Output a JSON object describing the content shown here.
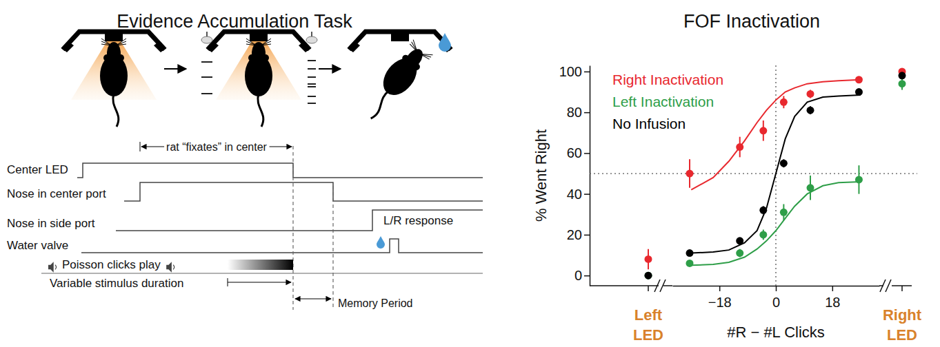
{
  "diagram": {
    "title": "Evidence Accumulation Task",
    "fixation_label": "rat “fixates” in center",
    "rows": [
      "Center LED",
      "Nose in center port",
      "Nose in side port",
      "Water valve"
    ],
    "response_label": "L/R response",
    "clicks_label": "Poisson clicks play",
    "duration_label": "Variable stimulus duration",
    "memory_label": "Memory Period"
  },
  "chart_data": {
    "type": "scatter",
    "title": "FOF Inactivation",
    "x_label": "#R − #L Clicks",
    "y_label": "% Went Right",
    "x": [
      -27.5,
      -11.5,
      -4,
      2.5,
      11,
      26.5
    ],
    "xlim": [
      -33,
      33
    ],
    "xticks": [
      {
        "value": -18,
        "label": "−18"
      },
      0,
      18
    ],
    "ylim": [
      -5,
      103
    ],
    "yticks": [
      0,
      20,
      40,
      60,
      80,
      100
    ],
    "x_ref": 0,
    "y_ref": 50,
    "led_labels": [
      "Left LED",
      "Right LED"
    ],
    "fit_x": [
      -27,
      -20,
      -15,
      -10,
      -6,
      -3,
      0,
      3,
      6,
      10,
      15,
      20,
      27
    ],
    "legend": "top-left",
    "series": [
      {
        "name": "Right Inactivation",
        "color": "#e8282e",
        "marker": "circle",
        "values": [
          50,
          63,
          71,
          85,
          89,
          96
        ],
        "errors": [
          7,
          5,
          5,
          3,
          2,
          1.5
        ],
        "fit": [
          42,
          48,
          56,
          66,
          75,
          81,
          86,
          90,
          92,
          94,
          95,
          95.5,
          96
        ],
        "left_led": 8,
        "left_led_error": 5,
        "right_led": 100,
        "right_led_error": 0
      },
      {
        "name": "Left Inactivation",
        "color": "#2e9e48",
        "marker": "circle",
        "values": [
          6,
          11,
          20,
          31,
          43,
          47
        ],
        "errors": [
          1.5,
          2,
          2.5,
          4,
          6,
          7
        ],
        "fit": [
          5,
          5.5,
          6.5,
          9,
          13,
          17,
          22,
          28,
          34,
          40,
          44,
          45.5,
          46
        ],
        "left_led": 0,
        "left_led_error": 0,
        "right_led": 94,
        "right_led_error": 3
      },
      {
        "name": "No Infusion",
        "color": "#000000",
        "marker": "circle",
        "values": [
          11,
          17,
          32,
          55,
          81,
          90
        ],
        "errors": [
          1.5,
          1.5,
          2,
          2,
          2,
          1.5
        ],
        "fit": [
          11,
          11.5,
          12.5,
          16,
          22,
          33,
          50,
          67,
          78,
          85,
          87.5,
          88,
          88.5
        ],
        "left_led": 0,
        "left_led_error": 0,
        "right_led": 98,
        "right_led_error": 1
      }
    ]
  }
}
